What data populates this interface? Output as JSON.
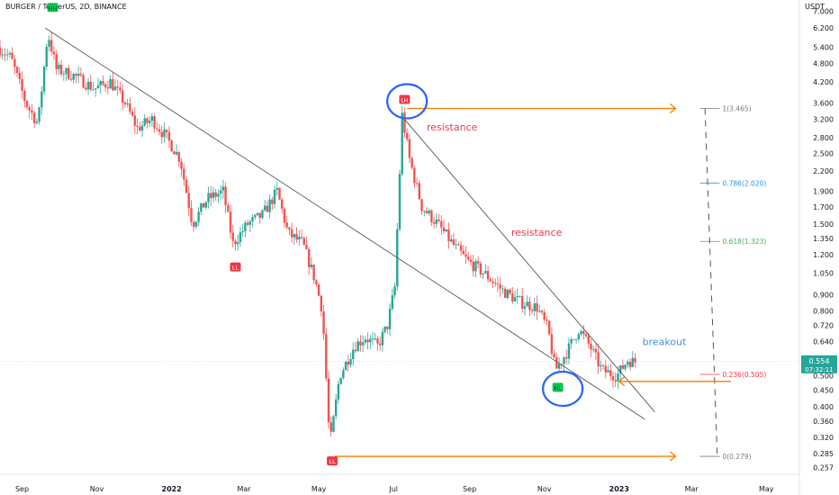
{
  "header": {
    "title": "BURGER / TetherUS, 2D, BINANCE",
    "unit": "USDT"
  },
  "colors": {
    "up": "#26a69a",
    "down": "#ef5350",
    "orange": "#f57c00",
    "blue": "#2962ff",
    "label_red": "#f23645",
    "breakout_blue": "#4a90d9",
    "last_price": "#26a69a"
  },
  "chart_data": {
    "type": "candlestick",
    "y_scale": "log",
    "ylim": [
      0.245,
      7.6
    ],
    "xlim": [
      "2021-08-14",
      "2023-05-28"
    ],
    "x_tick_labels": [
      {
        "label": "Sep",
        "date": "2021-09-01"
      },
      {
        "label": "Nov",
        "date": "2021-11-01"
      },
      {
        "label": "2022",
        "date": "2022-01-01"
      },
      {
        "label": "Mar",
        "date": "2022-03-01"
      },
      {
        "label": "May",
        "date": "2022-05-01"
      },
      {
        "label": "Jul",
        "date": "2022-07-01"
      },
      {
        "label": "Sep",
        "date": "2022-09-01"
      },
      {
        "label": "Nov",
        "date": "2022-11-01"
      },
      {
        "label": "2023",
        "date": "2023-01-01"
      },
      {
        "label": "Mar",
        "date": "2023-03-01"
      },
      {
        "label": "May",
        "date": "2023-05-01"
      }
    ],
    "y_tick_labels": [
      "7.000",
      "6.200",
      "5.400",
      "4.800",
      "4.200",
      "3.600",
      "3.200",
      "2.800",
      "2.500",
      "2.200",
      "1.900",
      "1.700",
      "1.500",
      "1.350",
      "1.200",
      "1.050",
      "0.900",
      "0.800",
      "0.720",
      "0.640",
      "0.500",
      "0.450",
      "0.400",
      "0.360",
      "0.320",
      "0.285",
      "0.257"
    ],
    "last_price": {
      "value": "0.554",
      "countdown": "07:32:11"
    },
    "price_path": [
      [
        "2021-08-14",
        5.4
      ],
      [
        "2021-08-25",
        5.0
      ],
      [
        "2021-09-06",
        3.6
      ],
      [
        "2021-09-16",
        3.1
      ],
      [
        "2021-09-24",
        6.0
      ],
      [
        "2021-10-01",
        4.6
      ],
      [
        "2021-10-15",
        4.4
      ],
      [
        "2021-11-01",
        4.0
      ],
      [
        "2021-11-14",
        4.2
      ],
      [
        "2021-11-26",
        3.6
      ],
      [
        "2021-12-06",
        3.0
      ],
      [
        "2021-12-18",
        3.2
      ],
      [
        "2021-12-30",
        2.8
      ],
      [
        "2022-01-10",
        2.4
      ],
      [
        "2022-01-20",
        1.5
      ],
      [
        "2022-02-01",
        1.8
      ],
      [
        "2022-02-14",
        1.9
      ],
      [
        "2022-02-22",
        1.3
      ],
      [
        "2022-03-06",
        1.5
      ],
      [
        "2022-03-18",
        1.6
      ],
      [
        "2022-03-30",
        1.9
      ],
      [
        "2022-04-08",
        1.4
      ],
      [
        "2022-04-20",
        1.3
      ],
      [
        "2022-04-30",
        1.0
      ],
      [
        "2022-05-06",
        0.8
      ],
      [
        "2022-05-12",
        0.3
      ],
      [
        "2022-05-20",
        0.5
      ],
      [
        "2022-06-01",
        0.62
      ],
      [
        "2022-06-10",
        0.66
      ],
      [
        "2022-06-20",
        0.62
      ],
      [
        "2022-06-28",
        0.72
      ],
      [
        "2022-07-04",
        0.95
      ],
      [
        "2022-07-10",
        3.3
      ],
      [
        "2022-07-16",
        2.4
      ],
      [
        "2022-07-26",
        1.7
      ],
      [
        "2022-08-08",
        1.5
      ],
      [
        "2022-08-20",
        1.3
      ],
      [
        "2022-09-01",
        1.15
      ],
      [
        "2022-09-15",
        1.05
      ],
      [
        "2022-10-01",
        0.92
      ],
      [
        "2022-10-15",
        0.85
      ],
      [
        "2022-10-28",
        0.82
      ],
      [
        "2022-11-06",
        0.7
      ],
      [
        "2022-11-12",
        0.52
      ],
      [
        "2022-11-22",
        0.6
      ],
      [
        "2022-12-01",
        0.7
      ],
      [
        "2022-12-10",
        0.62
      ],
      [
        "2022-12-20",
        0.52
      ],
      [
        "2023-01-01",
        0.5
      ],
      [
        "2023-01-10",
        0.56
      ],
      [
        "2023-01-14",
        0.554
      ]
    ],
    "markers": [
      {
        "label": "HH",
        "date": "2021-09-26",
        "price": 7.2,
        "kind": "green"
      },
      {
        "label": "LL",
        "date": "2022-02-22",
        "price": 1.1,
        "kind": "red"
      },
      {
        "label": "LH",
        "date": "2022-07-10",
        "price": 3.7,
        "kind": "red"
      },
      {
        "label": "LL",
        "date": "2022-05-12",
        "price": 0.27,
        "kind": "red"
      },
      {
        "label": "HL",
        "date": "2022-11-12",
        "price": 0.46,
        "kind": "green"
      }
    ],
    "annotations": [
      {
        "text": "resistance",
        "date": "2022-07-28",
        "price": 2.95,
        "color": "label_red"
      },
      {
        "text": "resistance",
        "date": "2022-10-05",
        "price": 1.38,
        "color": "label_red"
      },
      {
        "text": "breakout",
        "date": "2023-01-20",
        "price": 0.625,
        "color": "breakout_blue"
      }
    ],
    "fib_levels": [
      {
        "label": "1(3.465)",
        "price": 3.465,
        "color": "#787b86"
      },
      {
        "label": "0.786(2.020)",
        "price": 2.02,
        "color": "#2196f3"
      },
      {
        "label": "0.618(1.323)",
        "price": 1.323,
        "color": "#4caf50"
      },
      {
        "label": "0.236(0.505)",
        "price": 0.505,
        "color": "#f23645"
      },
      {
        "label": "0(0.279)",
        "price": 0.279,
        "color": "#787b86"
      }
    ],
    "trendlines": [
      {
        "from": [
          "2021-09-20",
          6.2
        ],
        "to": [
          "2023-01-22",
          0.365
        ],
        "color": "#555555"
      },
      {
        "from": [
          "2022-07-10",
          3.2
        ],
        "to": [
          "2023-01-30",
          0.385
        ],
        "color": "#555555"
      }
    ],
    "arrows": [
      {
        "from": [
          "2022-07-12",
          3.465
        ],
        "to": [
          "2023-02-16",
          3.465
        ],
        "direction": "right"
      },
      {
        "from": [
          "2022-05-14",
          0.279
        ],
        "to": [
          "2023-02-16",
          0.279
        ],
        "direction": "right"
      },
      {
        "from": [
          "2023-04-02",
          0.48
        ],
        "to": [
          "2023-01-01",
          0.48
        ],
        "direction": "left"
      }
    ],
    "circles": [
      {
        "date": "2022-07-12",
        "price": 3.65
      },
      {
        "date": "2022-11-16",
        "price": 0.455
      }
    ]
  }
}
